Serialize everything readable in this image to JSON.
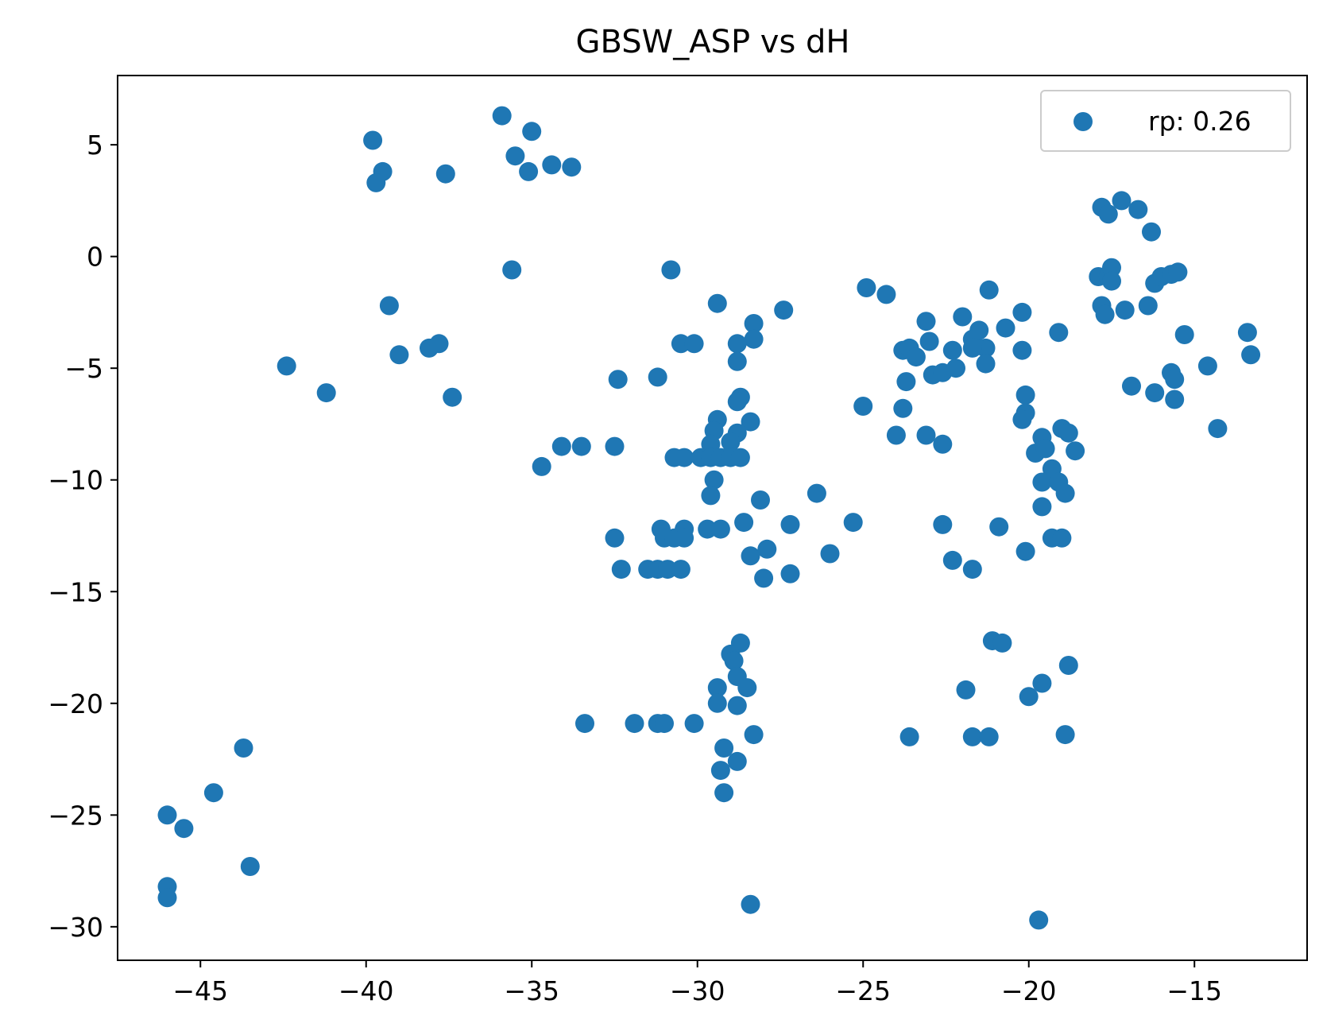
{
  "chart_data": {
    "type": "scatter",
    "title": "GBSW_ASP vs dH",
    "xlabel": "",
    "ylabel": "",
    "xlim": [
      -47.5,
      -11.6
    ],
    "ylim": [
      -31.5,
      8.1
    ],
    "x_ticks": [
      -45,
      -40,
      -35,
      -30,
      -25,
      -20,
      -15
    ],
    "y_ticks": [
      5,
      0,
      -5,
      -10,
      -15,
      -20,
      -25,
      -30
    ],
    "x_tick_labels": [
      "−45",
      "−40",
      "−35",
      "−30",
      "−25",
      "−20",
      "−15"
    ],
    "y_tick_labels": [
      "5",
      "0",
      "−5",
      "−10",
      "−15",
      "−20",
      "−25",
      "−30"
    ],
    "grid": false,
    "legend_position": "top-right",
    "marker_color": "#1f77b4",
    "series": [
      {
        "name": "rp: 0.26",
        "points": [
          [
            -39.8,
            5.2
          ],
          [
            -39.5,
            3.8
          ],
          [
            -39.7,
            3.3
          ],
          [
            -37.6,
            3.7
          ],
          [
            -35.9,
            6.3
          ],
          [
            -35.0,
            5.6
          ],
          [
            -35.5,
            4.5
          ],
          [
            -35.1,
            3.8
          ],
          [
            -34.4,
            4.1
          ],
          [
            -33.8,
            4.0
          ],
          [
            -35.6,
            -0.6
          ],
          [
            -39.3,
            -2.2
          ],
          [
            -39.0,
            -4.4
          ],
          [
            -38.1,
            -4.1
          ],
          [
            -37.8,
            -3.9
          ],
          [
            -42.4,
            -4.9
          ],
          [
            -41.2,
            -6.1
          ],
          [
            -37.4,
            -6.3
          ],
          [
            -34.1,
            -8.5
          ],
          [
            -33.5,
            -8.5
          ],
          [
            -32.5,
            -8.5
          ],
          [
            -34.7,
            -9.4
          ],
          [
            -32.4,
            -5.5
          ],
          [
            -31.2,
            -5.4
          ],
          [
            -30.8,
            -0.6
          ],
          [
            -30.5,
            -3.9
          ],
          [
            -30.1,
            -3.9
          ],
          [
            -29.4,
            -2.1
          ],
          [
            -28.3,
            -3.0
          ],
          [
            -28.3,
            -3.7
          ],
          [
            -28.8,
            -3.9
          ],
          [
            -28.8,
            -4.7
          ],
          [
            -27.4,
            -2.4
          ],
          [
            -28.7,
            -6.3
          ],
          [
            -28.8,
            -6.5
          ],
          [
            -28.4,
            -7.4
          ],
          [
            -29.4,
            -7.3
          ],
          [
            -29.5,
            -7.8
          ],
          [
            -28.8,
            -7.9
          ],
          [
            -29.6,
            -8.4
          ],
          [
            -29.0,
            -8.3
          ],
          [
            -30.7,
            -9.0
          ],
          [
            -30.4,
            -9.0
          ],
          [
            -29.9,
            -9.0
          ],
          [
            -29.6,
            -9.0
          ],
          [
            -29.3,
            -9.0
          ],
          [
            -29.0,
            -9.0
          ],
          [
            -28.7,
            -9.0
          ],
          [
            -29.5,
            -10.0
          ],
          [
            -29.6,
            -10.7
          ],
          [
            -29.7,
            -12.2
          ],
          [
            -29.3,
            -12.2
          ],
          [
            -31.1,
            -12.2
          ],
          [
            -30.4,
            -12.2
          ],
          [
            -32.5,
            -12.6
          ],
          [
            -31.0,
            -12.6
          ],
          [
            -30.7,
            -12.6
          ],
          [
            -30.4,
            -12.6
          ],
          [
            -32.3,
            -14.0
          ],
          [
            -31.5,
            -14.0
          ],
          [
            -31.2,
            -14.0
          ],
          [
            -30.9,
            -14.0
          ],
          [
            -30.5,
            -14.0
          ],
          [
            -28.1,
            -10.9
          ],
          [
            -28.6,
            -11.9
          ],
          [
            -27.2,
            -12.0
          ],
          [
            -28.4,
            -13.4
          ],
          [
            -27.9,
            -13.1
          ],
          [
            -28.0,
            -14.4
          ],
          [
            -27.2,
            -14.2
          ],
          [
            -26.4,
            -10.6
          ],
          [
            -25.3,
            -11.9
          ],
          [
            -26.0,
            -13.3
          ],
          [
            -28.7,
            -17.3
          ],
          [
            -29.0,
            -17.8
          ],
          [
            -28.9,
            -18.1
          ],
          [
            -28.8,
            -18.8
          ],
          [
            -29.4,
            -19.3
          ],
          [
            -28.5,
            -19.3
          ],
          [
            -28.8,
            -20.1
          ],
          [
            -29.4,
            -20.0
          ],
          [
            -33.4,
            -20.9
          ],
          [
            -31.9,
            -20.9
          ],
          [
            -31.2,
            -20.9
          ],
          [
            -31.0,
            -20.9
          ],
          [
            -30.1,
            -20.9
          ],
          [
            -28.3,
            -21.4
          ],
          [
            -29.2,
            -22.0
          ],
          [
            -28.8,
            -22.6
          ],
          [
            -29.3,
            -23.0
          ],
          [
            -29.2,
            -24.0
          ],
          [
            -28.4,
            -29.0
          ],
          [
            -46.0,
            -25.0
          ],
          [
            -45.5,
            -25.6
          ],
          [
            -44.6,
            -24.0
          ],
          [
            -43.7,
            -22.0
          ],
          [
            -43.5,
            -27.3
          ],
          [
            -46.0,
            -28.2
          ],
          [
            -46.0,
            -28.7
          ],
          [
            -24.9,
            -1.4
          ],
          [
            -24.3,
            -1.7
          ],
          [
            -25.0,
            -6.7
          ],
          [
            -23.7,
            -5.6
          ],
          [
            -23.8,
            -6.8
          ],
          [
            -24.0,
            -8.0
          ],
          [
            -23.1,
            -8.0
          ],
          [
            -22.6,
            -8.4
          ],
          [
            -23.8,
            -4.2
          ],
          [
            -23.6,
            -4.1
          ],
          [
            -23.4,
            -4.5
          ],
          [
            -23.1,
            -2.9
          ],
          [
            -23.0,
            -3.8
          ],
          [
            -22.9,
            -5.3
          ],
          [
            -22.6,
            -5.2
          ],
          [
            -22.3,
            -4.2
          ],
          [
            -22.2,
            -5.0
          ],
          [
            -22.0,
            -2.7
          ],
          [
            -21.7,
            -3.7
          ],
          [
            -21.5,
            -3.3
          ],
          [
            -21.3,
            -4.1
          ],
          [
            -21.2,
            -1.5
          ],
          [
            -21.3,
            -4.8
          ],
          [
            -20.7,
            -3.2
          ],
          [
            -21.7,
            -4.1
          ],
          [
            -20.2,
            -2.5
          ],
          [
            -20.2,
            -4.2
          ],
          [
            -20.1,
            -6.2
          ],
          [
            -20.1,
            -7.0
          ],
          [
            -20.2,
            -7.3
          ],
          [
            -19.1,
            -3.4
          ],
          [
            -19.8,
            -8.8
          ],
          [
            -19.6,
            -8.1
          ],
          [
            -19.5,
            -8.6
          ],
          [
            -19.0,
            -7.7
          ],
          [
            -18.8,
            -7.9
          ],
          [
            -18.6,
            -8.7
          ],
          [
            -19.3,
            -9.5
          ],
          [
            -19.6,
            -10.1
          ],
          [
            -19.1,
            -10.1
          ],
          [
            -18.9,
            -10.6
          ],
          [
            -19.6,
            -11.2
          ],
          [
            -19.3,
            -12.6
          ],
          [
            -19.0,
            -12.6
          ],
          [
            -22.6,
            -12.0
          ],
          [
            -20.9,
            -12.1
          ],
          [
            -22.3,
            -13.6
          ],
          [
            -21.7,
            -14.0
          ],
          [
            -20.1,
            -13.2
          ],
          [
            -21.1,
            -17.2
          ],
          [
            -20.8,
            -17.3
          ],
          [
            -18.8,
            -18.3
          ],
          [
            -21.9,
            -19.4
          ],
          [
            -19.6,
            -19.1
          ],
          [
            -20.0,
            -19.7
          ],
          [
            -18.9,
            -21.4
          ],
          [
            -23.6,
            -21.5
          ],
          [
            -21.7,
            -21.5
          ],
          [
            -21.2,
            -21.5
          ],
          [
            -19.7,
            -29.7
          ],
          [
            -17.8,
            2.2
          ],
          [
            -17.6,
            1.9
          ],
          [
            -17.2,
            2.5
          ],
          [
            -16.7,
            2.1
          ],
          [
            -16.3,
            1.1
          ],
          [
            -17.9,
            -0.9
          ],
          [
            -17.6,
            -0.9
          ],
          [
            -17.5,
            -0.5
          ],
          [
            -17.5,
            -1.1
          ],
          [
            -17.8,
            -2.2
          ],
          [
            -17.7,
            -2.6
          ],
          [
            -17.1,
            -2.4
          ],
          [
            -16.4,
            -2.2
          ],
          [
            -16.2,
            -1.2
          ],
          [
            -16.0,
            -0.9
          ],
          [
            -15.7,
            -0.8
          ],
          [
            -15.5,
            -0.7
          ],
          [
            -15.3,
            -3.5
          ],
          [
            -16.9,
            -5.8
          ],
          [
            -16.2,
            -6.1
          ],
          [
            -15.7,
            -5.2
          ],
          [
            -15.6,
            -5.5
          ],
          [
            -15.6,
            -6.4
          ],
          [
            -14.6,
            -4.9
          ],
          [
            -14.3,
            -7.7
          ],
          [
            -13.4,
            -3.4
          ],
          [
            -13.3,
            -4.4
          ]
        ]
      }
    ]
  }
}
